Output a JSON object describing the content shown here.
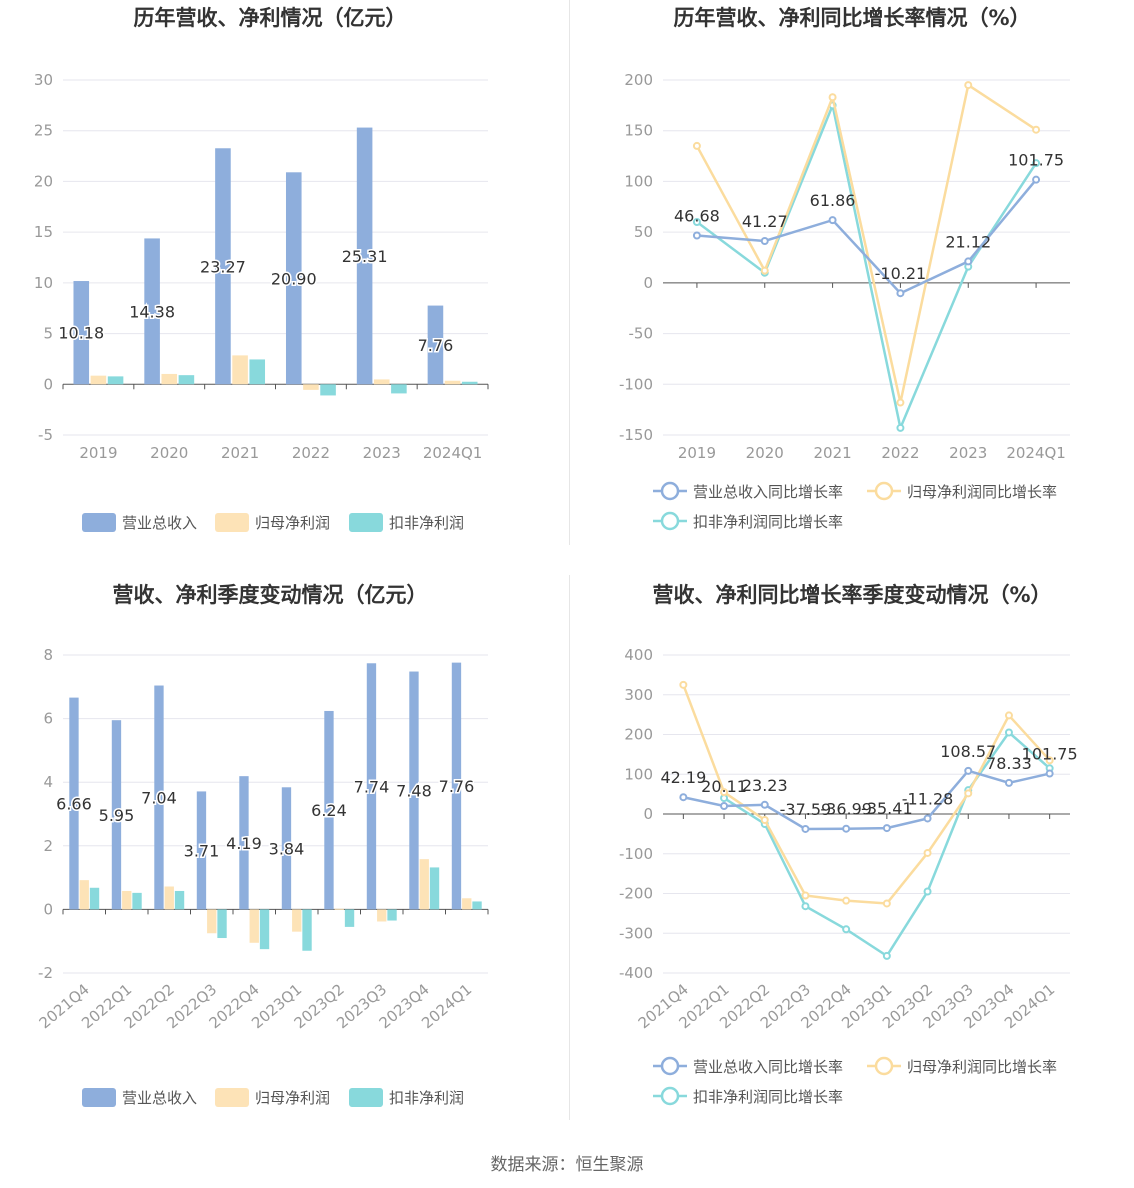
{
  "colors": {
    "revenue": "#8eaedc",
    "net_profit": "#fde3b7",
    "deducted_profit": "#88d9dc",
    "revenue_line": "#8eaedc",
    "net_profit_line": "#fbdc9e",
    "deducted_profit_line": "#88d9dc",
    "title": "#333333",
    "axis_text": "#999999",
    "label": "#333333",
    "grid": "#e6e6ee",
    "axis_line": "#555555"
  },
  "footer": {
    "source": "数据来源：恒生聚源"
  },
  "chart_data": [
    {
      "id": "annual-values",
      "type": "bar",
      "title": "历年营收、净利情况（亿元）",
      "categories": [
        "2019",
        "2020",
        "2021",
        "2022",
        "2023",
        "2024Q1"
      ],
      "ylim": [
        -5,
        30
      ],
      "yticks": [
        -5,
        0,
        5,
        10,
        15,
        20,
        25,
        30
      ],
      "labelSeries": 0,
      "series": [
        {
          "name": "营业总收入",
          "colorKey": "revenue",
          "values": [
            10.18,
            14.38,
            23.27,
            20.9,
            25.31,
            7.76
          ],
          "labels": [
            "10.18",
            "14.38",
            "23.27",
            "20.90",
            "25.31",
            "7.76"
          ]
        },
        {
          "name": "归母净利润",
          "colorKey": "net_profit",
          "values": [
            0.85,
            1.02,
            2.85,
            -0.55,
            0.48,
            0.35
          ]
        },
        {
          "name": "扣非净利润",
          "colorKey": "deducted_profit",
          "values": [
            0.78,
            0.9,
            2.45,
            -1.1,
            -0.9,
            0.25
          ]
        }
      ]
    },
    {
      "id": "annual-growth",
      "type": "line",
      "title": "历年营收、净利同比增长率情况（%）",
      "categories": [
        "2019",
        "2020",
        "2021",
        "2022",
        "2023",
        "2024Q1"
      ],
      "ylim": [
        -150,
        200
      ],
      "yticks": [
        -150,
        -100,
        -50,
        0,
        50,
        100,
        150,
        200
      ],
      "labelSeries": 0,
      "series": [
        {
          "name": "营业总收入同比增长率",
          "colorKey": "revenue_line",
          "values": [
            46.68,
            41.27,
            61.86,
            -10.21,
            21.12,
            101.75
          ],
          "labels": [
            "46.68",
            "41.27",
            "61.86",
            "-10.21",
            "21.12",
            "101.75"
          ]
        },
        {
          "name": "归母净利润同比增长率",
          "colorKey": "net_profit_line",
          "values": [
            135,
            12,
            183,
            -118,
            195,
            151
          ]
        },
        {
          "name": "扣非净利润同比增长率",
          "colorKey": "deducted_profit_line",
          "values": [
            60,
            10,
            175,
            -143,
            16,
            118
          ]
        }
      ]
    },
    {
      "id": "quarterly-values",
      "type": "bar",
      "title": "营收、净利季度变动情况（亿元）",
      "categories": [
        "2021Q4",
        "2022Q1",
        "2022Q2",
        "2022Q3",
        "2022Q4",
        "2023Q1",
        "2023Q2",
        "2023Q3",
        "2023Q4",
        "2024Q1"
      ],
      "ylim": [
        -2,
        8
      ],
      "yticks": [
        -2,
        0,
        2,
        4,
        6,
        8
      ],
      "labelSeries": 0,
      "series": [
        {
          "name": "营业总收入",
          "colorKey": "revenue",
          "values": [
            6.66,
            5.95,
            7.04,
            3.71,
            4.19,
            3.84,
            6.24,
            7.74,
            7.48,
            7.76
          ],
          "labels": [
            "6.66",
            "5.95",
            "7.04",
            "3.71",
            "4.19",
            "3.84",
            "6.24",
            "7.74",
            "7.48",
            "7.76"
          ]
        },
        {
          "name": "归母净利润",
          "colorKey": "net_profit",
          "values": [
            0.92,
            0.58,
            0.72,
            -0.75,
            -1.05,
            -0.7,
            0.02,
            -0.38,
            1.58,
            0.35
          ]
        },
        {
          "name": "扣非净利润",
          "colorKey": "deducted_profit",
          "values": [
            0.68,
            0.52,
            0.58,
            -0.9,
            -1.25,
            -1.3,
            -0.55,
            -0.35,
            1.32,
            0.25
          ]
        }
      ]
    },
    {
      "id": "quarterly-growth",
      "type": "line",
      "title": "营收、净利同比增长率季度变动情况（%）",
      "categories": [
        "2021Q4",
        "2022Q1",
        "2022Q2",
        "2022Q3",
        "2022Q4",
        "2023Q1",
        "2023Q2",
        "2023Q3",
        "2023Q4",
        "2024Q1"
      ],
      "ylim": [
        -400,
        400
      ],
      "yticks": [
        -400,
        -300,
        -200,
        -100,
        0,
        100,
        200,
        300,
        400
      ],
      "labelSeries": 0,
      "series": [
        {
          "name": "营业总收入同比增长率",
          "colorKey": "revenue_line",
          "values": [
            42.19,
            20.11,
            23.23,
            -37.59,
            -36.99,
            -35.41,
            -11.28,
            108.57,
            78.33,
            101.75
          ],
          "labels": [
            "42.19",
            "20.11",
            "23.23",
            "-37.59",
            "-36.99",
            "-35.41",
            "-11.28",
            "108.57",
            "78.33",
            "101.75"
          ]
        },
        {
          "name": "归母净利润同比增长率",
          "colorKey": "net_profit_line",
          "values": [
            325,
            55,
            -15,
            -205,
            -218,
            -225,
            -98,
            52,
            248,
            135
          ]
        },
        {
          "name": "扣非净利润同比增长率",
          "colorKey": "deducted_profit_line",
          "values": [
            null,
            40,
            -25,
            -232,
            -290,
            -357,
            -195,
            60,
            205,
            115
          ]
        }
      ]
    }
  ]
}
